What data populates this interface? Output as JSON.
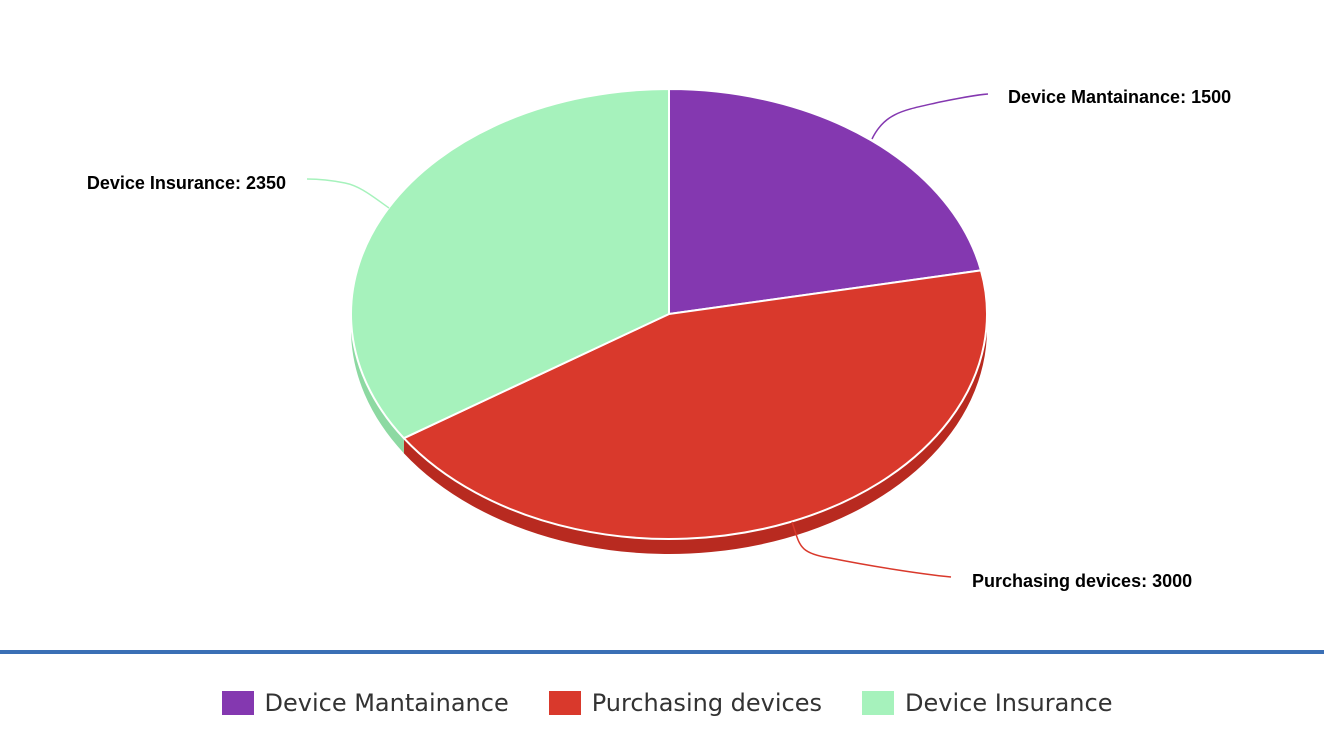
{
  "chart_data": {
    "type": "pie",
    "style": "3d",
    "slices": [
      {
        "label": "Device Mantainance",
        "value": 1500,
        "color": "#8438b0",
        "side_color": "#6a2a90"
      },
      {
        "label": "Purchasing devices",
        "value": 3000,
        "color": "#d9392c",
        "side_color": "#b82a20"
      },
      {
        "label": "Device Insurance",
        "value": 2350,
        "color": "#a6f2bc",
        "side_color": "#8dd9a2"
      }
    ],
    "data_labels": [
      "Device Mantainance: 1500",
      "Purchasing devices: 3000",
      "Device Insurance: 2350"
    ],
    "legend_position": "bottom"
  },
  "legend": {
    "items": [
      {
        "label": "Device Mantainance",
        "color": "#8438b0"
      },
      {
        "label": "Purchasing devices",
        "color": "#d9392c"
      },
      {
        "label": "Device Insurance",
        "color": "#a6f2bc"
      }
    ]
  },
  "colors": {
    "divider": "#3a6fb5"
  }
}
